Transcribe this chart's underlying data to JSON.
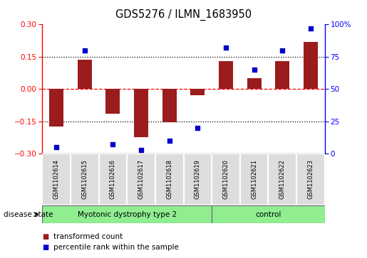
{
  "title": "GDS5276 / ILMN_1683950",
  "samples": [
    "GSM1102614",
    "GSM1102615",
    "GSM1102616",
    "GSM1102617",
    "GSM1102618",
    "GSM1102619",
    "GSM1102620",
    "GSM1102621",
    "GSM1102622",
    "GSM1102623"
  ],
  "red_bars": [
    -0.175,
    0.135,
    -0.115,
    -0.225,
    -0.155,
    -0.03,
    0.13,
    0.05,
    0.13,
    0.22
  ],
  "blue_dots": [
    5,
    80,
    7,
    3,
    10,
    20,
    82,
    65,
    80,
    97
  ],
  "bar_color": "#9B1C1C",
  "dot_color": "#0000CC",
  "ylim_left": [
    -0.3,
    0.3
  ],
  "ylim_right": [
    0,
    100
  ],
  "yticks_left": [
    -0.3,
    -0.15,
    0.0,
    0.15,
    0.3
  ],
  "yticks_right": [
    0,
    25,
    50,
    75,
    100
  ],
  "ytick_labels_right": [
    "0",
    "25",
    "50",
    "75",
    "100%"
  ],
  "disease_state_label": "disease state",
  "legend_items": [
    {
      "label": "transformed count",
      "color": "#9B1C1C"
    },
    {
      "label": "percentile rank within the sample",
      "color": "#0000CC"
    }
  ],
  "bar_width": 0.5,
  "group1_label": "Myotonic dystrophy type 2",
  "group1_count": 6,
  "group2_label": "control",
  "group2_count": 4,
  "group_color": "#90EE90"
}
